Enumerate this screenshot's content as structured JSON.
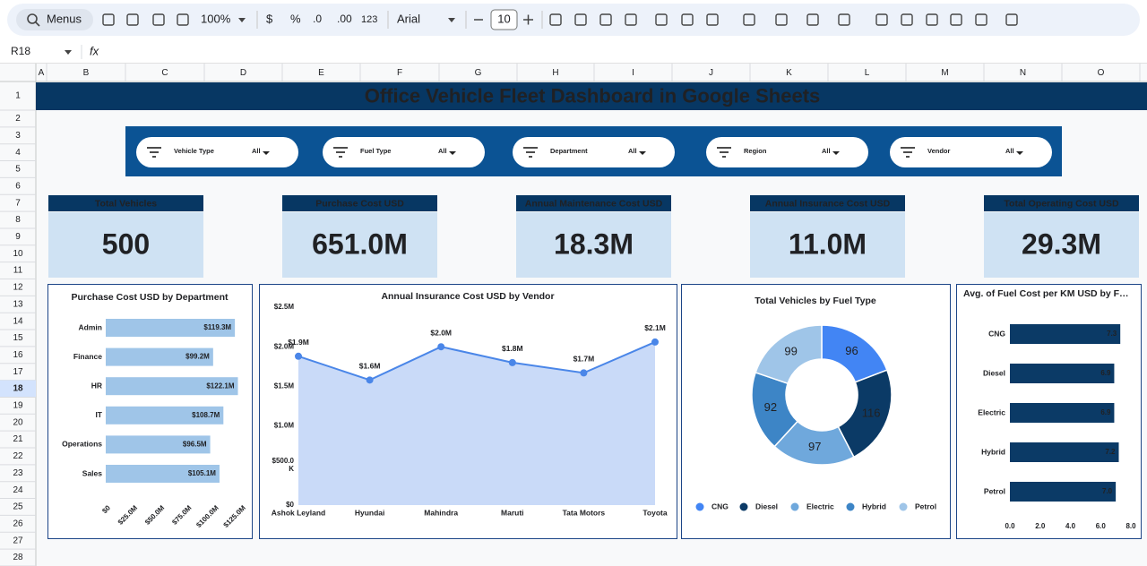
{
  "toolbar": {
    "search": "Menus",
    "zoom": "100%",
    "currency": "$",
    "percent": "%",
    "decrease_decimal": ".0",
    "increase_decimal": ".00",
    "number_format": "123",
    "font": "Arial",
    "font_size": "10"
  },
  "name_box": "R18",
  "formula_icon": "fx",
  "columns": [
    "A",
    "B",
    "C",
    "D",
    "E",
    "F",
    "G",
    "H",
    "I",
    "J",
    "K",
    "L",
    "M",
    "N",
    "O"
  ],
  "rows": [
    1,
    2,
    3,
    4,
    5,
    6,
    7,
    8,
    9,
    10,
    11,
    12,
    13,
    14,
    15,
    16,
    17,
    18,
    19,
    20,
    21,
    22,
    23,
    24,
    25,
    26,
    27,
    28
  ],
  "dashboard": {
    "title": "Office Vehicle Fleet Dashboard in Google Sheets",
    "filters": [
      {
        "label": "Vehicle Type",
        "value": "All"
      },
      {
        "label": "Fuel Type",
        "value": "All"
      },
      {
        "label": "Department",
        "value": "All"
      },
      {
        "label": "Region",
        "value": "All"
      },
      {
        "label": "Vendor",
        "value": "All"
      }
    ],
    "kpis": [
      {
        "label": "Total Vehicles",
        "value": 500
      },
      {
        "label": "Purchase Cost USD",
        "value": "651.0M"
      },
      {
        "label": "Annual Maintenance Cost USD",
        "value": "18.3M"
      },
      {
        "label": "Annual Insurance Cost USD",
        "value": "11.0M"
      },
      {
        "label": "Total Operating Cost USD",
        "value": "29.3M"
      }
    ]
  },
  "chart_data": [
    {
      "type": "bar",
      "orientation": "horizontal",
      "title": "Purchase Cost USD by Department",
      "categories": [
        "Admin",
        "Finance",
        "HR",
        "IT",
        "Operations",
        "Sales"
      ],
      "values": [
        119300000,
        99200000,
        122100000,
        108700000,
        96500000,
        105100000
      ],
      "value_labels": [
        "$119.3M",
        "$99.2M",
        "$122.1M",
        "$108.7M",
        "$96.5M",
        "$105.1M"
      ],
      "color": "#9fc5e8",
      "label_color": "#202124",
      "xlim": [
        0,
        125000000
      ],
      "xticks": [
        {
          "value": 0,
          "label": "$0"
        },
        {
          "value": 25000000,
          "label": "$25.0M"
        },
        {
          "value": 50000000,
          "label": "$50.0M"
        },
        {
          "value": 75000000,
          "label": "$75.0M"
        },
        {
          "value": 100000000,
          "label": "$100.0M"
        },
        {
          "value": 125000000,
          "label": "$125.0M"
        }
      ]
    },
    {
      "type": "area",
      "title": "Annual Insurance Cost USD by Vendor",
      "categories": [
        "Ashok Leyland",
        "Hyundai",
        "Mahindra",
        "Maruti",
        "Tata Motors",
        "Toyota"
      ],
      "values": [
        1880000,
        1580000,
        2000000,
        1800000,
        1670000,
        2060000
      ],
      "value_labels": [
        "$1.9M",
        "$1.6M",
        "$2.0M",
        "$1.8M",
        "$1.7M",
        "$2.1M"
      ],
      "color": "#4a86e8",
      "fill": "#c9daf8",
      "ylim": [
        0,
        2500000
      ],
      "yticks": [
        {
          "value": 0,
          "label": "$0"
        },
        {
          "value": 500000,
          "label": "$500.0 K"
        },
        {
          "value": 1000000,
          "label": "$1.0M"
        },
        {
          "value": 1500000,
          "label": "$1.5M"
        },
        {
          "value": 2000000,
          "label": "$2.0M"
        },
        {
          "value": 2500000,
          "label": "$2.5M"
        }
      ]
    },
    {
      "type": "pie",
      "donut": true,
      "title": "Total Vehicles by Fuel Type",
      "categories": [
        "CNG",
        "Diesel",
        "Electric",
        "Hybrid",
        "Petrol"
      ],
      "values": [
        96,
        116,
        97,
        92,
        99
      ],
      "colors": [
        "#4285f4",
        "#0b3a66",
        "#6fa8dc",
        "#3d85c6",
        "#9fc5e8"
      ],
      "legend": "bottom"
    },
    {
      "type": "bar",
      "orientation": "horizontal",
      "title": "Avg. of Fuel Cost per KM USD by F…",
      "categories": [
        "CNG",
        "Diesel",
        "Electric",
        "Hybrid",
        "Petrol"
      ],
      "values": [
        7.3,
        6.9,
        6.9,
        7.2,
        7.0
      ],
      "value_labels": [
        "7.3",
        "6.9",
        "6.9",
        "7.2",
        "7.0"
      ],
      "color": "#0b3a66",
      "label_color": "#ffffff",
      "xlim": [
        0,
        8
      ],
      "xticks": [
        {
          "value": 0,
          "label": "0.0"
        },
        {
          "value": 2,
          "label": "2.0"
        },
        {
          "value": 4,
          "label": "4.0"
        },
        {
          "value": 6,
          "label": "6.0"
        },
        {
          "value": 8,
          "label": "8.0"
        }
      ]
    }
  ]
}
